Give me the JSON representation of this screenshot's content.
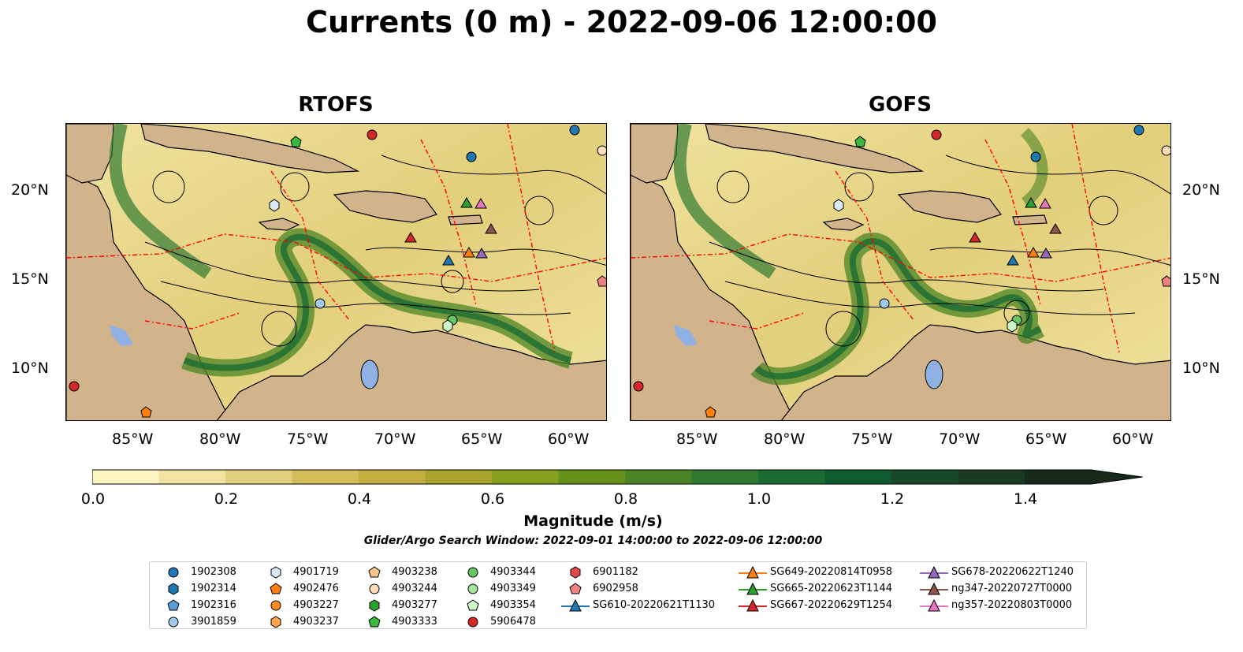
{
  "title": "Currents (0 m) - 2022-09-06 12:00:00",
  "panels": [
    {
      "title": "RTOFS"
    },
    {
      "title": "GOFS"
    }
  ],
  "axes": {
    "lon_labels": [
      "85°W",
      "80°W",
      "75°W",
      "70°W",
      "65°W",
      "60°W"
    ],
    "lat_labels": [
      "20°N",
      "15°N",
      "10°N"
    ],
    "lon_range": [
      -89.6,
      -58.0
    ],
    "lat_range": [
      7.0,
      24.0
    ]
  },
  "colorbar": {
    "title": "Magnitude (m/s)",
    "ticks": [
      "0.0",
      "0.2",
      "0.4",
      "0.6",
      "0.8",
      "1.0",
      "1.2",
      "1.4"
    ],
    "range": [
      0.0,
      1.5
    ],
    "step": 0.1,
    "colors": [
      "#fdf6c3",
      "#f1e3a0",
      "#e2cf7b",
      "#d4bd58",
      "#c4ae3f",
      "#a8a42e",
      "#87a01d",
      "#65901a",
      "#4b8424",
      "#2f7a30",
      "#1a6c33",
      "#0f5a2e",
      "#184a2a",
      "#1a3a21",
      "#17291b"
    ],
    "extend": "max"
  },
  "search_window": "Glider/Argo Search Window: 2022-09-01 14:00:00 to 2022-09-06 12:00:00",
  "colors": {
    "land": "#d2b48c",
    "lake": "#8fb0e3",
    "eez": "#ff0000",
    "streamline": "#000000"
  },
  "legend": {
    "columns": [
      [
        {
          "label": "1902308",
          "marker": "circle",
          "color": "#1f77b4"
        },
        {
          "label": "1902314",
          "marker": "hexagon",
          "color": "#1f77b4"
        },
        {
          "label": "1902316",
          "marker": "pentagon",
          "color": "#5aa0d6"
        },
        {
          "label": "3901859",
          "marker": "circle",
          "color": "#9ecae9"
        }
      ],
      [
        {
          "label": "4901719",
          "marker": "hexagon",
          "color": "#dbe9f6"
        },
        {
          "label": "4902476",
          "marker": "pentagon",
          "color": "#ff7f0e"
        },
        {
          "label": "4903227",
          "marker": "circle",
          "color": "#ff8c1a"
        },
        {
          "label": "4903237",
          "marker": "hexagon",
          "color": "#ffa54f"
        }
      ],
      [
        {
          "label": "4903238",
          "marker": "pentagon",
          "color": "#ffc48a"
        },
        {
          "label": "4903244",
          "marker": "circle",
          "color": "#ffdcb8"
        },
        {
          "label": "4903277",
          "marker": "hexagon",
          "color": "#2ca02c"
        },
        {
          "label": "4903333",
          "marker": "pentagon",
          "color": "#3cb83c"
        }
      ],
      [
        {
          "label": "4903344",
          "marker": "circle",
          "color": "#66c866"
        },
        {
          "label": "4903349",
          "marker": "circle",
          "color": "#a6e3a0"
        },
        {
          "label": "4903354",
          "marker": "pentagon",
          "color": "#ccf5c8"
        },
        {
          "label": "5906478",
          "marker": "circle",
          "color": "#d62728"
        }
      ],
      [
        {
          "label": "6901182",
          "marker": "hexagon",
          "color": "#e04a4a"
        },
        {
          "label": "6902958",
          "marker": "pentagon",
          "color": "#ee8080"
        },
        {
          "label": "SG610-20220621T1130",
          "marker": "triangle-line",
          "color": "#1f77b4"
        }
      ],
      [
        {
          "label": "SG649-20220814T0958",
          "marker": "triangle-line",
          "color": "#ff7f0e"
        },
        {
          "label": "SG665-20220623T1144",
          "marker": "triangle-line",
          "color": "#2ca02c"
        },
        {
          "label": "SG667-20220629T1254",
          "marker": "triangle-line",
          "color": "#d62728"
        }
      ],
      [
        {
          "label": "SG678-20220622T1240",
          "marker": "triangle-line",
          "color": "#9467bd"
        },
        {
          "label": "ng347-20220727T0000",
          "marker": "triangle-line",
          "color": "#8c564b"
        },
        {
          "label": "ng357-20220803T0000",
          "marker": "triangle-line",
          "color": "#e377c2"
        }
      ]
    ]
  }
}
